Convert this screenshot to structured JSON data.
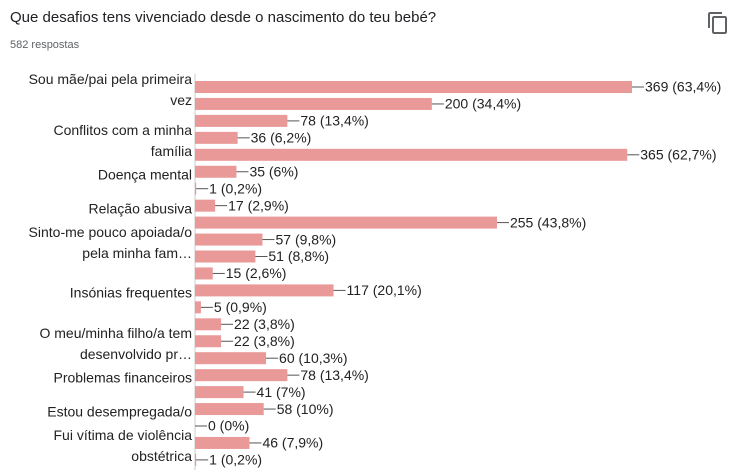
{
  "chart_data": {
    "type": "bar",
    "orientation": "horizontal",
    "title": "Que desafios tens vivenciado desde o nascimento do teu bebé?",
    "subtitle": "582 respostas",
    "color": "#ea9999",
    "categories": [
      "Sou mãe/pai pela primeira vez",
      null,
      null,
      "Conflitos com a minha família",
      null,
      "Doença mental",
      null,
      "Relação abusiva",
      null,
      "Sinto-me pouco apoiada/o pela minha fam…",
      null,
      null,
      "Insónias frequentes",
      null,
      null,
      "O meu/minha filho/a tem desenvolvido pr…",
      null,
      "Problemas financeiros",
      null,
      "Estou desempregada/o",
      null,
      "Fui vítima de violência obstétrica",
      null
    ],
    "values": [
      369,
      200,
      78,
      36,
      365,
      35,
      1,
      17,
      255,
      57,
      51,
      15,
      117,
      5,
      22,
      22,
      60,
      78,
      41,
      58,
      0,
      46,
      1
    ],
    "value_labels": [
      "369 (63,4%)",
      "200 (34,4%)",
      "78 (13,4%)",
      "36 (6,2%)",
      "365 (62,7%)",
      "35 (6%)",
      "1 (0,2%)",
      "17 (2,9%)",
      "255 (43,8%)",
      "57 (9,8%)",
      "51 (8,8%)",
      "15 (2,6%)",
      "117 (20,1%)",
      "5 (0,9%)",
      "22 (3,8%)",
      "22 (3,8%)",
      "60 (10,3%)",
      "78 (13,4%)",
      "41 (7%)",
      "58 (10%)",
      "0 (0%)",
      "46 (7,9%)",
      "1 (0,2%)"
    ]
  }
}
